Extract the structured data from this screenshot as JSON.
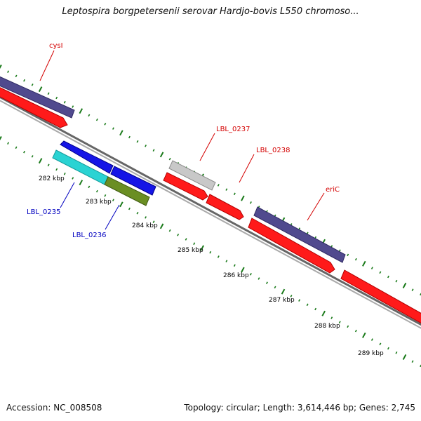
{
  "title": "Leptospira borgpetersenii serovar Hardjo-bovis L550 chromoso...",
  "footer": {
    "accession": "Accession: NC_008508",
    "topology": "Topology: circular; Length: 3,614,446 bp; Genes: 2,745"
  },
  "colors": {
    "purple": "#504a8e",
    "red": "#ff1a1a",
    "blue": "#1515e6",
    "cyan": "#2ad3d3",
    "olive": "#6a8e23",
    "gray": "#bdbdbd",
    "tick": "#1a7a1a",
    "backbone": "#888888",
    "forward_label": "#d40000",
    "reverse_label": "#0000c0"
  },
  "ticks": [
    "282 kbp",
    "283 kbp",
    "284 kbp",
    "285 kbp",
    "286 kbp",
    "287 kbp",
    "288 kbp",
    "289 kbp"
  ],
  "genes": {
    "forward": [
      "cysI",
      "LBL_0237",
      "LBL_0238",
      "eriC"
    ],
    "reverse": [
      "LBL_0235",
      "LBL_0236"
    ]
  }
}
